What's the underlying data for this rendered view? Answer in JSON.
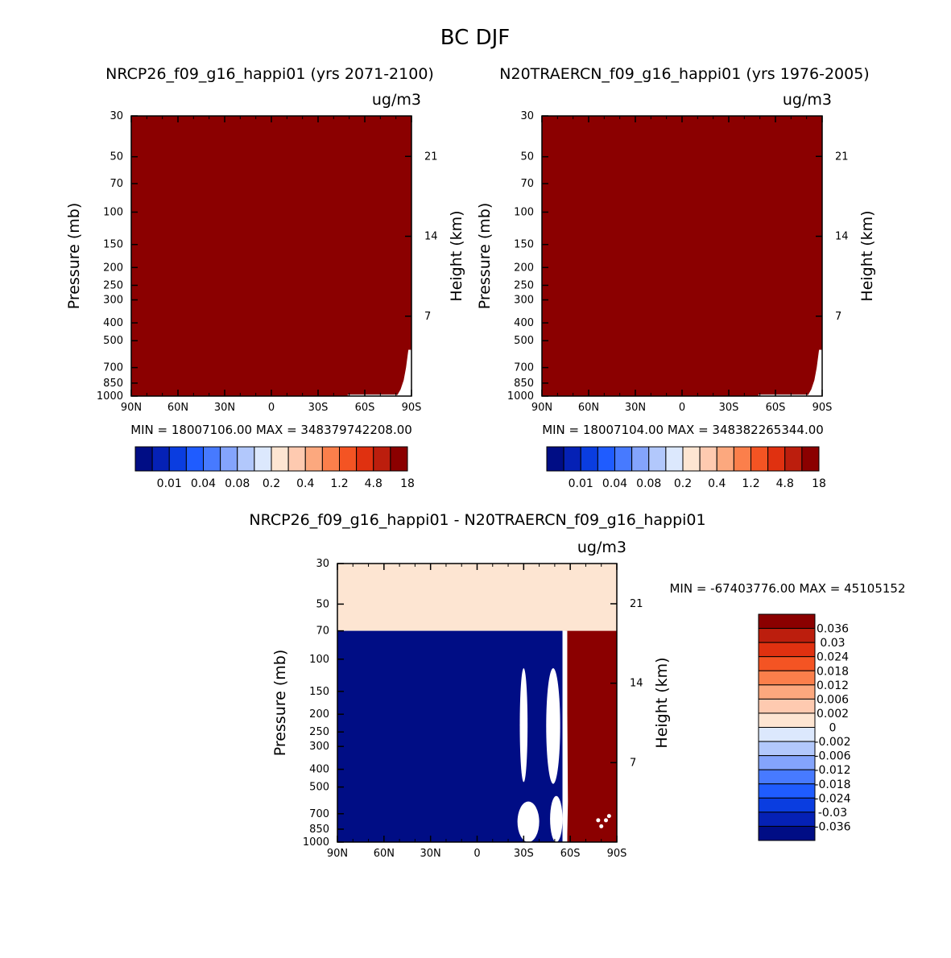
{
  "figure": {
    "title": "BC DJF"
  },
  "chart_data": [
    {
      "type": "heatmap",
      "title": "NRCP26_f09_g16_happi01 (yrs 2071-2100)",
      "units": "ug/m3",
      "ylabel": "Pressure (mb)",
      "y2label": "Height (km)",
      "x_ticks": [
        "90N",
        "60N",
        "30N",
        "0",
        "30S",
        "60S",
        "90S"
      ],
      "y_ticks": [
        30,
        50,
        70,
        100,
        150,
        200,
        250,
        300,
        400,
        500,
        700,
        850,
        1000
      ],
      "y2_ticks": [
        21,
        14,
        7
      ],
      "ylim": [
        1000,
        30
      ],
      "y_scale": "log",
      "stats": "MIN = 18007106.00   MAX = 348379742208.00",
      "fill_color": "#8b0000",
      "colorbar": {
        "orientation": "horizontal",
        "colors": [
          "#000d85",
          "#0521b5",
          "#0a3de0",
          "#1f5cff",
          "#477aff",
          "#84a4fc",
          "#b2c8fc",
          "#dce8fd",
          "#fde5d2",
          "#fecab0",
          "#fca87e",
          "#fb7f4b",
          "#f45423",
          "#e03110",
          "#bc1e0d",
          "#8b0000"
        ],
        "labels": [
          "0.01",
          "0.04",
          "0.08",
          "0.2",
          "0.4",
          "1.2",
          "4.8",
          "18"
        ]
      }
    },
    {
      "type": "heatmap",
      "title": "N20TRAERCN_f09_g16_happi01 (yrs 1976-2005)",
      "units": "ug/m3",
      "ylabel": "Pressure (mb)",
      "y2label": "Height (km)",
      "x_ticks": [
        "90N",
        "60N",
        "30N",
        "0",
        "30S",
        "60S",
        "90S"
      ],
      "y_ticks": [
        30,
        50,
        70,
        100,
        150,
        200,
        250,
        300,
        400,
        500,
        700,
        850,
        1000
      ],
      "y2_ticks": [
        21,
        14,
        7
      ],
      "ylim": [
        1000,
        30
      ],
      "y_scale": "log",
      "stats": "MIN = 18007104.00   MAX = 348382265344.00",
      "fill_color": "#8b0000",
      "colorbar": {
        "orientation": "horizontal",
        "colors": [
          "#000d85",
          "#0521b5",
          "#0a3de0",
          "#1f5cff",
          "#477aff",
          "#84a4fc",
          "#b2c8fc",
          "#dce8fd",
          "#fde5d2",
          "#fecab0",
          "#fca87e",
          "#fb7f4b",
          "#f45423",
          "#e03110",
          "#bc1e0d",
          "#8b0000"
        ],
        "labels": [
          "0.01",
          "0.04",
          "0.08",
          "0.2",
          "0.4",
          "1.2",
          "4.8",
          "18"
        ]
      }
    },
    {
      "type": "heatmap",
      "title": "NRCP26_f09_g16_happi01 - N20TRAERCN_f09_g16_happi01",
      "units": "ug/m3",
      "ylabel": "Pressure (mb)",
      "y2label": "Height (km)",
      "x_ticks": [
        "90N",
        "60N",
        "30N",
        "0",
        "30S",
        "60S",
        "90S"
      ],
      "y_ticks": [
        30,
        50,
        70,
        100,
        150,
        200,
        250,
        300,
        400,
        500,
        700,
        850,
        1000
      ],
      "y2_ticks": [
        21,
        14,
        7
      ],
      "ylim": [
        1000,
        30
      ],
      "y_scale": "log",
      "stats": "MIN = -67403776.00   MAX = 45105152",
      "colors": {
        "top_band": "#fde5d2",
        "low": "#000d85",
        "high": "#8b0000",
        "gap": "#ffffff"
      },
      "colorbar": {
        "orientation": "vertical",
        "colors": [
          "#8b0000",
          "#bc1e0d",
          "#e03110",
          "#f45423",
          "#fb7f4b",
          "#fca87e",
          "#fecab0",
          "#fde5d2",
          "#dce8fd",
          "#b2c8fc",
          "#84a4fc",
          "#477aff",
          "#1f5cff",
          "#0a3de0",
          "#0521b5",
          "#000d85"
        ],
        "labels": [
          "0.036",
          "0.03",
          "0.024",
          "0.018",
          "0.012",
          "0.006",
          "0.002",
          "0",
          "-0.002",
          "-0.006",
          "-0.012",
          "-0.018",
          "-0.024",
          "-0.03",
          "-0.036"
        ]
      }
    }
  ]
}
